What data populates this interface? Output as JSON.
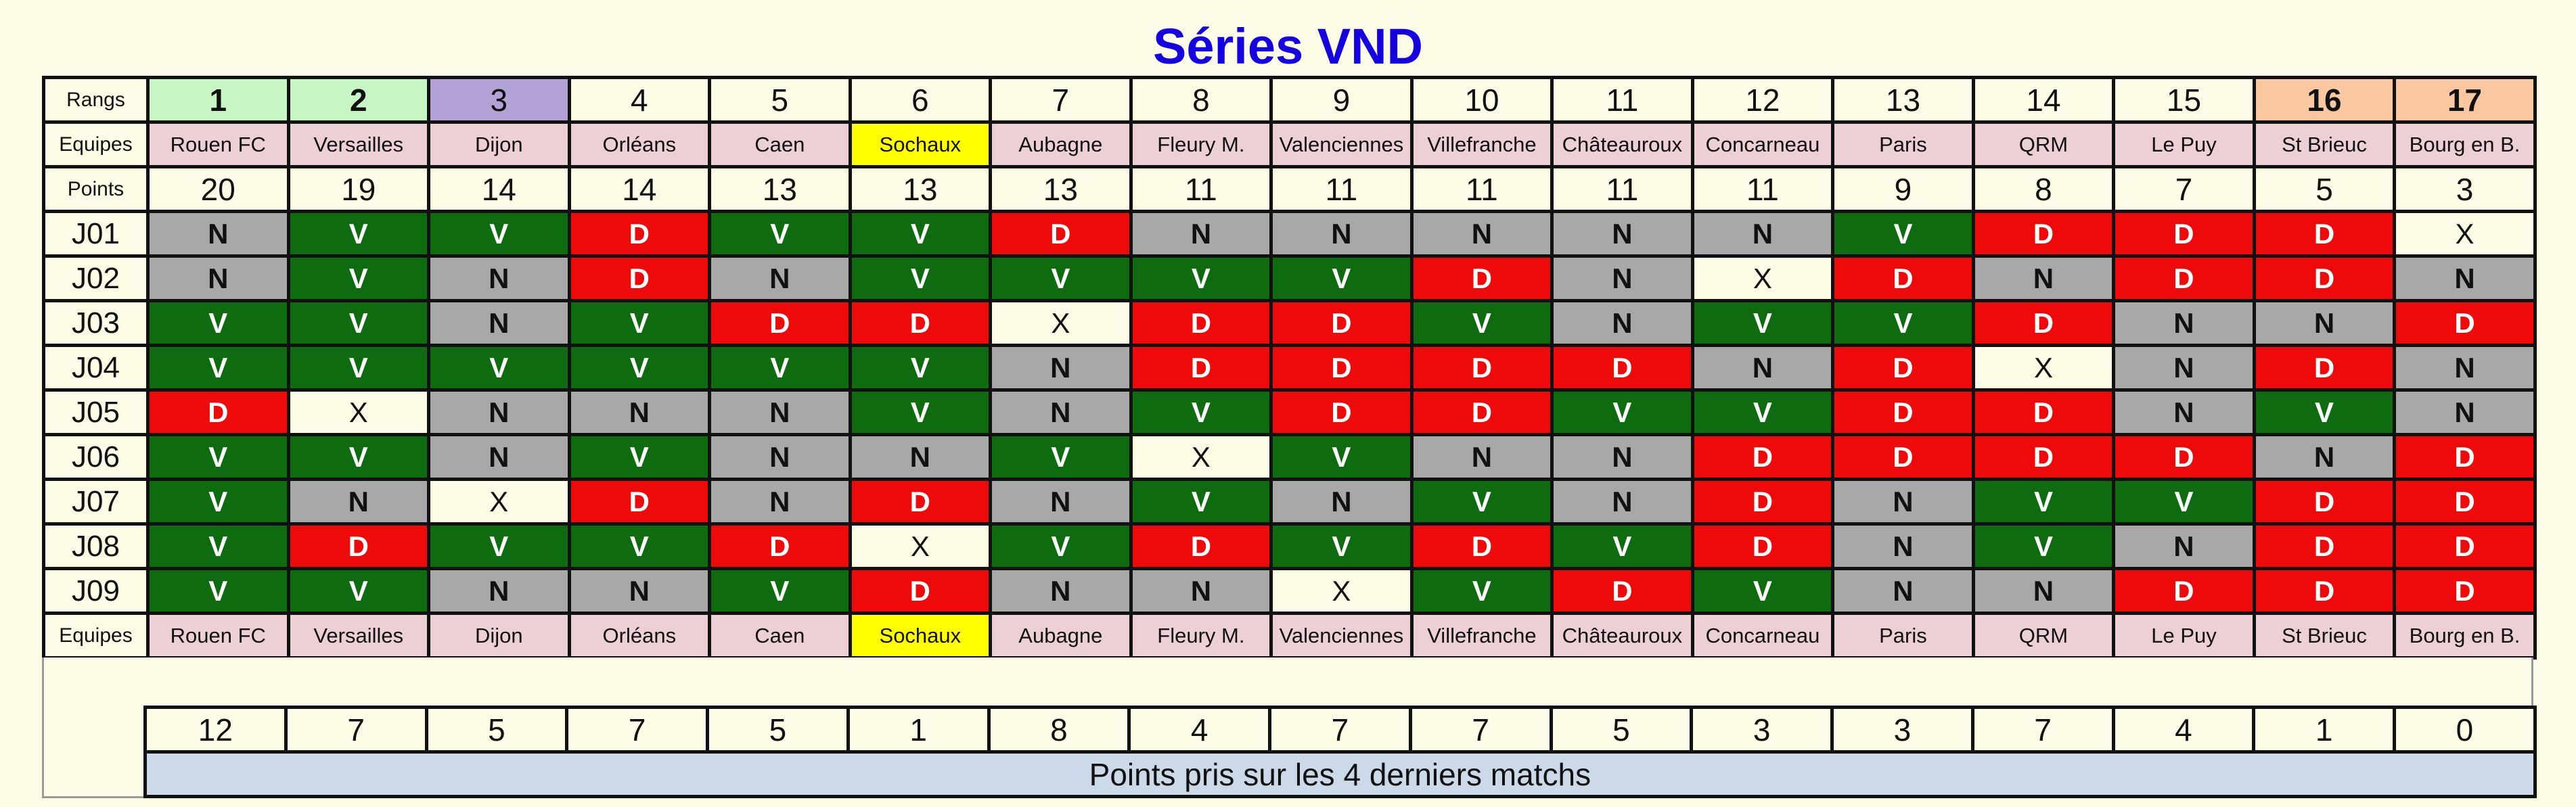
{
  "title": "Séries VND",
  "labels": {
    "rangs": "Rangs",
    "equipes": "Equipes",
    "points": "Points"
  },
  "colors": {
    "title": "#1400e0",
    "background": "#fcfbe6",
    "team_header": "#ecd0d6",
    "highlight_team": "#ffff00",
    "rank_1": "#c7f5c3",
    "rank_2": "#c7f5c3",
    "rank_3": "#b3a2d6",
    "rank_relegation": "#f9c7a0",
    "result_V": "#0f6b0f",
    "result_N": "#a8a8a8",
    "result_D": "#ee0a0a",
    "result_X": "#fcfbe6",
    "caption_bg": "#ccd9e8"
  },
  "ranks": [
    "1",
    "2",
    "3",
    "4",
    "5",
    "6",
    "7",
    "8",
    "9",
    "10",
    "11",
    "12",
    "13",
    "14",
    "15",
    "16",
    "17"
  ],
  "teams": [
    "Rouen FC",
    "Versailles",
    "Dijon",
    "Orléans",
    "Caen",
    "Sochaux",
    "Aubagne",
    "Fleury M.",
    "Valenciennes",
    "Villefranche",
    "Châteauroux",
    "Concarneau",
    "Paris",
    "QRM",
    "Le Puy",
    "St Brieuc",
    "Bourg en B."
  ],
  "points": [
    "20",
    "19",
    "14",
    "14",
    "13",
    "13",
    "13",
    "11",
    "11",
    "11",
    "11",
    "11",
    "9",
    "8",
    "7",
    "5",
    "3"
  ],
  "matchdays": [
    {
      "label": "J01",
      "results": [
        "N",
        "V",
        "V",
        "D",
        "V",
        "V",
        "D",
        "N",
        "N",
        "N",
        "N",
        "N",
        "V",
        "D",
        "D",
        "D",
        "X"
      ]
    },
    {
      "label": "J02",
      "results": [
        "N",
        "V",
        "N",
        "D",
        "N",
        "V",
        "V",
        "V",
        "V",
        "D",
        "N",
        "X",
        "D",
        "N",
        "D",
        "D",
        "N"
      ]
    },
    {
      "label": "J03",
      "results": [
        "V",
        "V",
        "N",
        "V",
        "D",
        "D",
        "X",
        "D",
        "D",
        "V",
        "N",
        "V",
        "V",
        "D",
        "N",
        "N",
        "D"
      ]
    },
    {
      "label": "J04",
      "results": [
        "V",
        "V",
        "V",
        "V",
        "V",
        "V",
        "N",
        "D",
        "D",
        "D",
        "D",
        "N",
        "D",
        "X",
        "N",
        "D",
        "N"
      ]
    },
    {
      "label": "J05",
      "results": [
        "D",
        "X",
        "N",
        "N",
        "N",
        "V",
        "N",
        "V",
        "D",
        "D",
        "V",
        "V",
        "D",
        "D",
        "N",
        "V",
        "N"
      ]
    },
    {
      "label": "J06",
      "results": [
        "V",
        "V",
        "N",
        "V",
        "N",
        "N",
        "V",
        "X",
        "V",
        "N",
        "N",
        "D",
        "D",
        "D",
        "D",
        "N",
        "D"
      ]
    },
    {
      "label": "J07",
      "results": [
        "V",
        "N",
        "X",
        "D",
        "N",
        "D",
        "N",
        "V",
        "N",
        "V",
        "N",
        "D",
        "N",
        "V",
        "V",
        "D",
        "D"
      ]
    },
    {
      "label": "J08",
      "results": [
        "V",
        "D",
        "V",
        "V",
        "D",
        "X",
        "V",
        "D",
        "V",
        "D",
        "V",
        "D",
        "N",
        "V",
        "N",
        "D",
        "D"
      ]
    },
    {
      "label": "J09",
      "results": [
        "V",
        "V",
        "N",
        "N",
        "V",
        "D",
        "N",
        "N",
        "X",
        "V",
        "D",
        "V",
        "N",
        "N",
        "D",
        "D",
        "D"
      ]
    }
  ],
  "recent_points": [
    "12",
    "7",
    "5",
    "7",
    "5",
    "1",
    "8",
    "4",
    "7",
    "7",
    "5",
    "3",
    "3",
    "7",
    "4",
    "1",
    "0"
  ],
  "recent_caption": "Points pris sur les 4 derniers matchs"
}
